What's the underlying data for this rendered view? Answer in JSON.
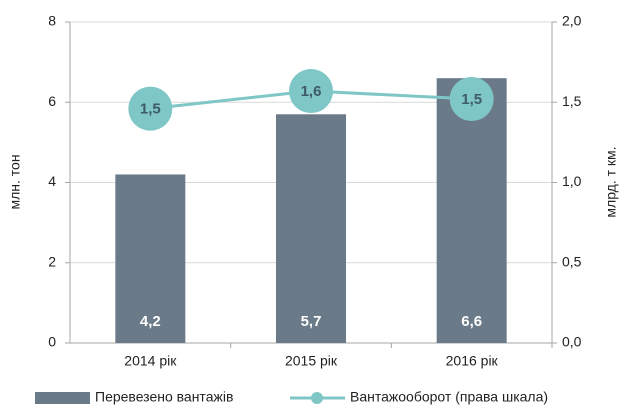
{
  "chart_data": {
    "type": "bar",
    "categories": [
      "2014 рік",
      "2015 рік",
      "2016 рік"
    ],
    "ylabel": "млн. тон",
    "y2label": "млрд. т км.",
    "ylim": [
      0,
      8
    ],
    "yticks": [
      0,
      2,
      4,
      6,
      8
    ],
    "y2lim": [
      0,
      2
    ],
    "y2ticks": [
      {
        "value": 0,
        "label": "0,0"
      },
      {
        "value": 0.5,
        "label": "0,5"
      },
      {
        "value": 1,
        "label": "1,0"
      },
      {
        "value": 1.5,
        "label": "1,5"
      },
      {
        "value": 2,
        "label": "2,0"
      }
    ],
    "grid": true,
    "series": [
      {
        "name": "Перевезено вантажів",
        "type": "bar",
        "color": "#6b7a89",
        "values": [
          4.2,
          5.7,
          6.6
        ],
        "value_labels": [
          "4,2",
          "5,7",
          "6,6"
        ]
      },
      {
        "name": "Вантажооборот (права шкала)",
        "type": "line",
        "axis": "y2",
        "color": "#7fc6c6",
        "values": [
          1.46,
          1.57,
          1.52
        ],
        "value_labels": [
          "1,5",
          "1,6",
          "1,5"
        ]
      }
    ]
  }
}
